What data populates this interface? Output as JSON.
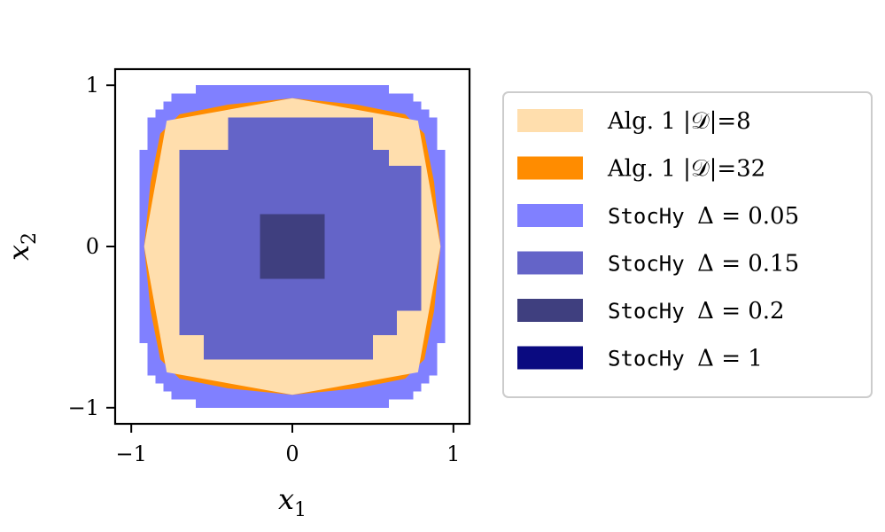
{
  "chart_data": {
    "type": "area",
    "xlabel": "x_1",
    "ylabel": "x_2",
    "xlim": [
      -1.1,
      1.1
    ],
    "ylim": [
      -1.1,
      1.1
    ],
    "x_ticks": [
      {
        "value": -1,
        "label": "−1"
      },
      {
        "value": 0,
        "label": "0"
      },
      {
        "value": 1,
        "label": "1"
      }
    ],
    "y_ticks": [
      {
        "value": -1,
        "label": "−1"
      },
      {
        "value": 0,
        "label": "0"
      },
      {
        "value": 1,
        "label": "1"
      }
    ],
    "grid": false,
    "legend_position": "right",
    "series": [
      {
        "name": "StocHy Δ = 0.05",
        "prefix": "StocHy",
        "math": "Δ = 0.05",
        "color": "#8080ff",
        "kind": "grid",
        "cells": [
          [
            -0.6,
            0.95,
            0.6,
            1.0
          ],
          [
            -0.75,
            0.9,
            0.75,
            0.95
          ],
          [
            -0.8,
            0.85,
            0.8,
            0.9
          ],
          [
            -0.85,
            0.8,
            0.85,
            0.85
          ],
          [
            -0.9,
            0.6,
            0.9,
            0.8
          ],
          [
            -0.95,
            -0.6,
            0.95,
            0.6
          ],
          [
            -0.9,
            -0.8,
            0.9,
            -0.6
          ],
          [
            -0.85,
            -0.85,
            0.85,
            -0.8
          ],
          [
            -0.8,
            -0.9,
            0.8,
            -0.85
          ],
          [
            -0.75,
            -0.95,
            0.75,
            -0.9
          ],
          [
            -0.6,
            -1.0,
            0.6,
            -0.95
          ]
        ]
      },
      {
        "name": "Alg. 1 |𝒟|=32",
        "prefix": "Alg. 1",
        "math": "|𝒟|=32",
        "color": "#ff8c00",
        "kind": "polygon",
        "points": [
          [
            0.0,
            0.92
          ],
          [
            0.4,
            0.88
          ],
          [
            0.7,
            0.82
          ],
          [
            0.82,
            0.7
          ],
          [
            0.88,
            0.4
          ],
          [
            0.92,
            0.0
          ],
          [
            0.88,
            -0.4
          ],
          [
            0.82,
            -0.7
          ],
          [
            0.7,
            -0.82
          ],
          [
            0.4,
            -0.88
          ],
          [
            0.0,
            -0.92
          ],
          [
            -0.4,
            -0.88
          ],
          [
            -0.7,
            -0.82
          ],
          [
            -0.82,
            -0.7
          ],
          [
            -0.88,
            -0.4
          ],
          [
            -0.92,
            0.0
          ],
          [
            -0.88,
            0.4
          ],
          [
            -0.82,
            0.7
          ],
          [
            -0.7,
            0.82
          ],
          [
            -0.4,
            0.88
          ]
        ]
      },
      {
        "name": "Alg. 1 |𝒟|=8",
        "prefix": "Alg. 1",
        "math": "|𝒟|=8",
        "color": "#ffdead",
        "kind": "polygon",
        "points": [
          [
            0.0,
            0.92
          ],
          [
            0.78,
            0.78
          ],
          [
            0.92,
            0.0
          ],
          [
            0.78,
            -0.78
          ],
          [
            0.0,
            -0.92
          ],
          [
            -0.78,
            -0.78
          ],
          [
            -0.92,
            0.0
          ],
          [
            -0.78,
            0.78
          ]
        ]
      },
      {
        "name": "StocHy Δ = 0.15",
        "prefix": "StocHy",
        "math": "Δ = 0.15",
        "color": "#6464c8",
        "kind": "grid",
        "cells": [
          [
            -0.4,
            0.6,
            0.5,
            0.8
          ],
          [
            -0.7,
            0.5,
            0.6,
            0.6
          ],
          [
            -0.7,
            0.4,
            0.8,
            0.5
          ],
          [
            -0.7,
            -0.4,
            0.8,
            0.4
          ],
          [
            -0.7,
            -0.55,
            0.65,
            -0.4
          ],
          [
            -0.55,
            -0.65,
            0.5,
            -0.55
          ],
          [
            -0.55,
            -0.7,
            0.5,
            -0.65
          ]
        ]
      },
      {
        "name": "StocHy Δ = 0.2",
        "prefix": "StocHy",
        "math": "Δ = 0.2",
        "color": "#3f3f7f",
        "kind": "grid",
        "cells": [
          [
            -0.2,
            -0.2,
            0.2,
            0.2
          ]
        ]
      },
      {
        "name": "StocHy Δ = 1",
        "prefix": "StocHy",
        "math": "Δ = 1",
        "color": "#0a0a80",
        "kind": "grid",
        "cells": []
      }
    ],
    "legend_order": [
      2,
      1,
      0,
      3,
      4,
      5
    ]
  }
}
